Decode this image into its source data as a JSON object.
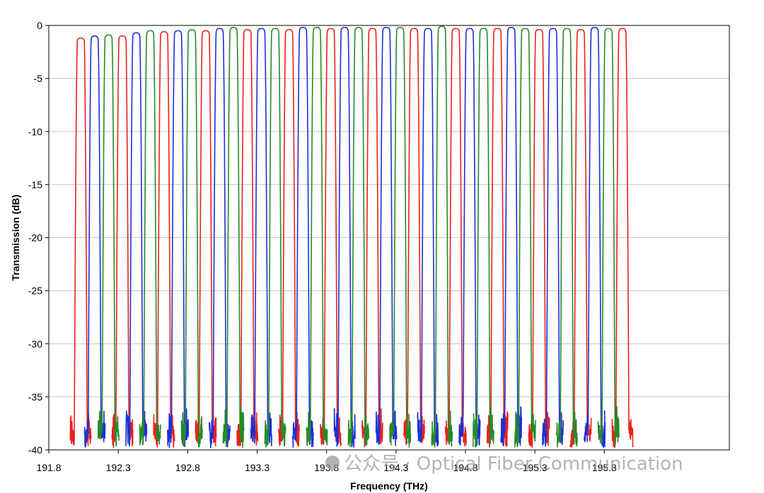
{
  "chart_data": {
    "type": "line",
    "title": "",
    "xlabel": "Frequency (THz)",
    "ylabel": "Transmission (dB)",
    "xlim": [
      191.8,
      196.7
    ],
    "ylim": [
      -40,
      0
    ],
    "x_ticks": [
      "191.8",
      "192.3",
      "192.8",
      "193.3",
      "193.8",
      "194.3",
      "194.8",
      "195.3",
      "195.8"
    ],
    "x_tick_values": [
      191.8,
      192.3,
      192.8,
      193.3,
      193.8,
      194.3,
      194.8,
      195.3,
      195.8
    ],
    "y_ticks": [
      "0",
      "-5",
      "-10",
      "-15",
      "-20",
      "-25",
      "-30",
      "-35",
      "-40"
    ],
    "y_tick_values": [
      0,
      -5,
      -10,
      -15,
      -20,
      -25,
      -30,
      -35,
      -40
    ],
    "grid": "horizontal",
    "legend": "none",
    "channel_spacing_thz": 0.1,
    "passband_width_thz": 0.05,
    "noise_floor_db": -38,
    "colors": {
      "red": "#e8221b",
      "blue": "#1f2fd6",
      "green": "#268a2a",
      "grid": "#c8c8c8",
      "axis": "#000000"
    },
    "series": [
      {
        "color": "red",
        "centers": [
          192.03,
          192.33,
          192.63,
          192.93,
          193.23,
          193.53,
          193.83,
          194.13,
          194.43,
          194.73,
          195.03,
          195.33,
          195.63,
          195.93
        ],
        "peaks": [
          -1.2,
          -1.0,
          -0.6,
          -0.5,
          -0.4,
          -0.4,
          -0.3,
          -0.3,
          -0.3,
          -0.3,
          -0.3,
          -0.4,
          -0.4,
          -0.3
        ]
      },
      {
        "color": "blue",
        "centers": [
          192.13,
          192.43,
          192.73,
          193.03,
          193.33,
          193.63,
          193.93,
          194.23,
          194.53,
          194.83,
          195.13,
          195.43,
          195.73
        ],
        "peaks": [
          -1.0,
          -0.7,
          -0.5,
          -0.3,
          -0.3,
          -0.2,
          -0.2,
          -0.2,
          -0.3,
          -0.3,
          -0.2,
          -0.3,
          -0.2
        ]
      },
      {
        "color": "green",
        "centers": [
          192.23,
          192.53,
          192.83,
          193.13,
          193.43,
          193.73,
          194.03,
          194.33,
          194.63,
          194.93,
          195.23,
          195.53,
          195.83
        ],
        "peaks": [
          -0.9,
          -0.5,
          -0.4,
          -0.2,
          -0.3,
          -0.2,
          -0.2,
          -0.2,
          -0.1,
          -0.3,
          -0.3,
          -0.3,
          -0.3
        ]
      }
    ]
  },
  "watermark": {
    "text": "公众号 · Optical Fiber Communication"
  }
}
